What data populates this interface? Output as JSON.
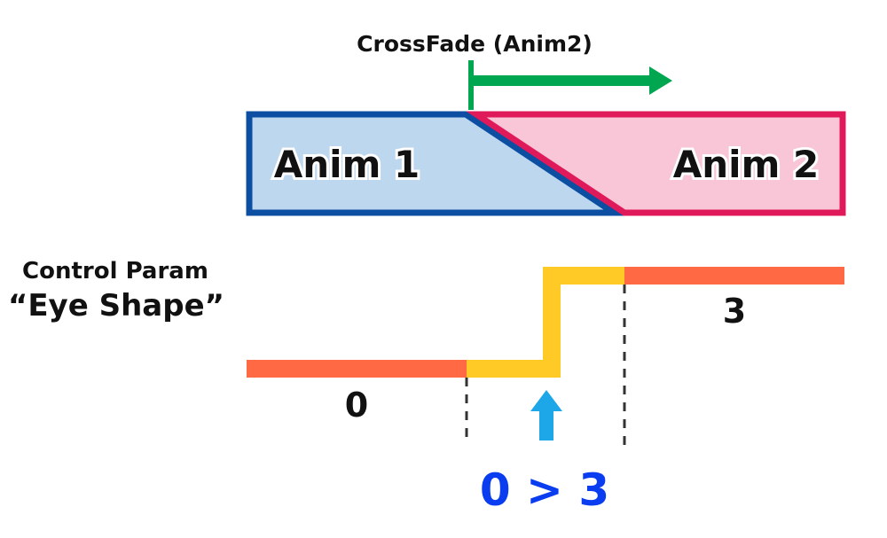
{
  "crossfade": {
    "label": "CrossFade (Anim2)",
    "arrow_color": "#00a650"
  },
  "timeline": {
    "anim1": {
      "label": "Anim 1",
      "fill": "#bdd7ee",
      "stroke": "#0b4ea2"
    },
    "anim2": {
      "label": "Anim 2",
      "fill": "#f8c6d6",
      "stroke": "#e0195a"
    }
  },
  "control_param": {
    "title_line1": "Control Param",
    "title_line2": "“Eye Shape”",
    "value_before": "0",
    "value_after": "3",
    "change_label": "0 > 3",
    "colors": {
      "steady": "#ff6a45",
      "transition": "#ffc926",
      "marker": "#1ea7e8",
      "change_label": "#0a3cf0"
    }
  }
}
